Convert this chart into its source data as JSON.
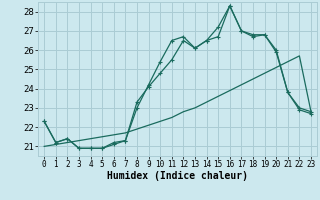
{
  "xlabel": "Humidex (Indice chaleur)",
  "xlim": [
    -0.5,
    23.5
  ],
  "ylim": [
    20.5,
    28.5
  ],
  "yticks": [
    21,
    22,
    23,
    24,
    25,
    26,
    27,
    28
  ],
  "xticks": [
    0,
    1,
    2,
    3,
    4,
    5,
    6,
    7,
    8,
    9,
    10,
    11,
    12,
    13,
    14,
    15,
    16,
    17,
    18,
    19,
    20,
    21,
    22,
    23
  ],
  "background_color": "#cce8ee",
  "grid_color": "#aaccd4",
  "line_color": "#1a6b5e",
  "line1_x": [
    0,
    1,
    2,
    3,
    4,
    5,
    6,
    7,
    8,
    9,
    10,
    11,
    12,
    13,
    14,
    15,
    16,
    17,
    18,
    19,
    20,
    21,
    22,
    23
  ],
  "line1_y": [
    22.3,
    21.2,
    21.4,
    20.9,
    20.9,
    20.9,
    21.1,
    21.3,
    23.3,
    24.1,
    24.8,
    25.5,
    26.5,
    26.1,
    26.5,
    26.7,
    28.3,
    27.0,
    26.8,
    26.8,
    25.9,
    23.8,
    23.0,
    22.8
  ],
  "line2_x": [
    0,
    1,
    2,
    3,
    4,
    5,
    6,
    7,
    8,
    9,
    10,
    11,
    12,
    13,
    14,
    15,
    16,
    17,
    18,
    19,
    20,
    21,
    22,
    23
  ],
  "line2_y": [
    22.3,
    21.2,
    21.4,
    20.9,
    20.9,
    20.9,
    21.2,
    21.3,
    23.0,
    24.2,
    25.4,
    26.5,
    26.7,
    26.1,
    26.5,
    27.2,
    28.3,
    27.0,
    26.7,
    26.8,
    26.0,
    23.8,
    22.9,
    22.7
  ],
  "line3_x": [
    0,
    1,
    2,
    3,
    4,
    5,
    6,
    7,
    8,
    9,
    10,
    11,
    12,
    13,
    14,
    15,
    16,
    17,
    18,
    19,
    20,
    21,
    22,
    23
  ],
  "line3_y": [
    21.0,
    21.1,
    21.2,
    21.3,
    21.4,
    21.5,
    21.6,
    21.7,
    21.9,
    22.1,
    22.3,
    22.5,
    22.8,
    23.0,
    23.3,
    23.6,
    23.9,
    24.2,
    24.5,
    24.8,
    25.1,
    25.4,
    25.7,
    22.8
  ],
  "marker_size": 3,
  "line_width": 0.9
}
